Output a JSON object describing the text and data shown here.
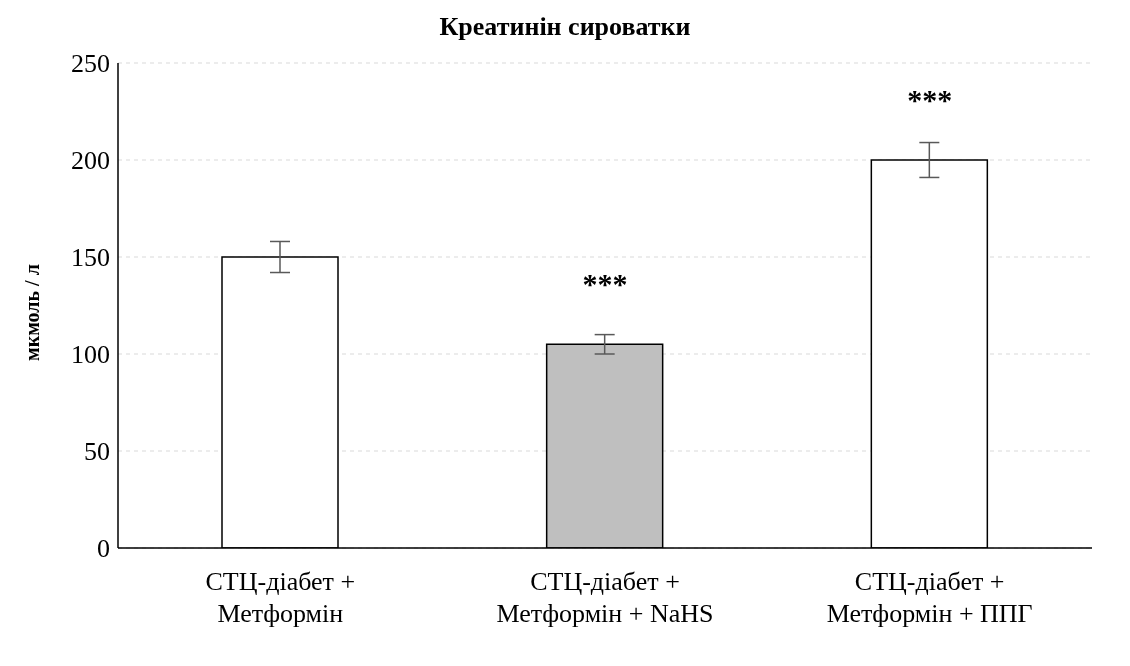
{
  "chart_data": {
    "type": "bar",
    "title": "Креатинін сироватки",
    "ylabel": "мкмоль / л",
    "categories": [
      "СТЦ-діабет +\nМетформін",
      "СТЦ-діабет +\nМетформін + NaHS",
      "СТЦ-діабет +\nМетформін + ППГ"
    ],
    "values": [
      150,
      105,
      200
    ],
    "errors": [
      8,
      5,
      9
    ],
    "colors": [
      "#ffffff",
      "#bfbfbf",
      "#ffffff"
    ],
    "ylim": [
      0,
      250
    ],
    "yticks": [
      0,
      50,
      100,
      150,
      200,
      250
    ],
    "grid": "y",
    "annotations": [
      {
        "text": "***",
        "x": "СТЦ-діабет +\nМетформін + NaHS",
        "y": 105
      },
      {
        "text": "***",
        "x": "СТЦ-діабет +\nМетформін + ППГ",
        "y": 200
      }
    ]
  }
}
